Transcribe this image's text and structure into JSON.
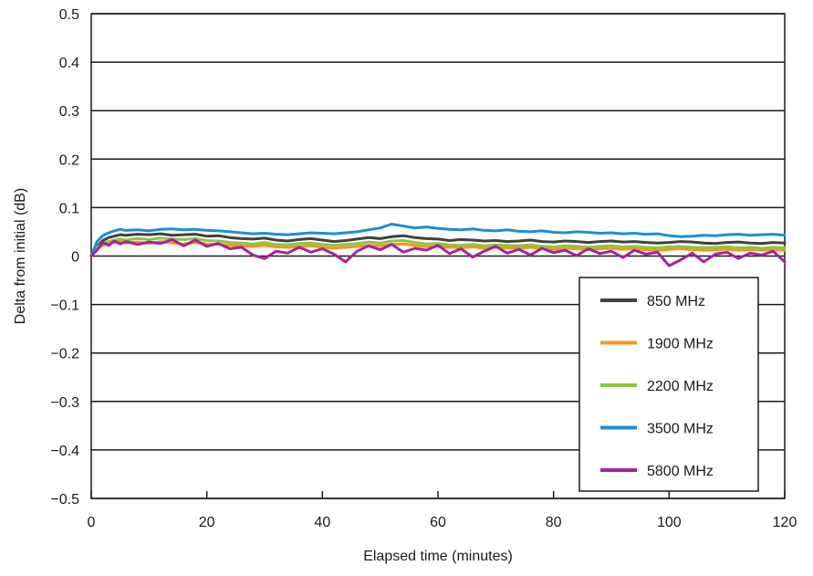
{
  "chart_data": {
    "type": "line",
    "xlabel": "Elapsed time (minutes)",
    "ylabel": "Delta from initial (dB)",
    "xlim": [
      0,
      120
    ],
    "ylim": [
      -0.5,
      0.5
    ],
    "x_ticks": [
      0,
      20,
      40,
      60,
      80,
      100,
      120
    ],
    "x_tick_labels": [
      "0",
      "20",
      "40",
      "60",
      "80",
      "100",
      "120"
    ],
    "y_ticks": [
      0.5,
      0.4,
      0.3,
      0.2,
      0.1,
      0,
      -0.1,
      -0.2,
      -0.3,
      -0.4,
      -0.5
    ],
    "y_tick_labels": [
      "0.5",
      "0.4",
      "0.3",
      "0.2",
      "0.1",
      "0",
      "−0.1",
      "−0.2",
      "−0.3",
      "−0.4",
      "−0.5"
    ],
    "grid": "horizontal",
    "legend_position": "bottom-right",
    "x": [
      0,
      1,
      2,
      3,
      4,
      5,
      6,
      8,
      10,
      12,
      14,
      16,
      18,
      20,
      22,
      24,
      26,
      28,
      30,
      32,
      34,
      36,
      38,
      40,
      42,
      44,
      46,
      48,
      50,
      52,
      54,
      56,
      58,
      60,
      62,
      64,
      66,
      68,
      70,
      72,
      74,
      76,
      78,
      80,
      82,
      84,
      86,
      88,
      90,
      92,
      94,
      96,
      98,
      100,
      102,
      104,
      106,
      108,
      110,
      112,
      114,
      116,
      118,
      120
    ],
    "series": [
      {
        "name": "850 MHz",
        "color": "#404040",
        "values": [
          0.0,
          0.02,
          0.032,
          0.038,
          0.041,
          0.044,
          0.043,
          0.045,
          0.044,
          0.046,
          0.043,
          0.044,
          0.045,
          0.041,
          0.042,
          0.038,
          0.036,
          0.035,
          0.037,
          0.033,
          0.031,
          0.034,
          0.036,
          0.033,
          0.03,
          0.032,
          0.035,
          0.038,
          0.036,
          0.04,
          0.042,
          0.038,
          0.036,
          0.035,
          0.032,
          0.034,
          0.033,
          0.031,
          0.032,
          0.03,
          0.031,
          0.033,
          0.03,
          0.029,
          0.031,
          0.03,
          0.028,
          0.03,
          0.031,
          0.029,
          0.03,
          0.028,
          0.027,
          0.028,
          0.03,
          0.029,
          0.027,
          0.026,
          0.028,
          0.029,
          0.027,
          0.026,
          0.028,
          0.027
        ]
      },
      {
        "name": "1900 MHz",
        "color": "#f7941d",
        "values": [
          0.0,
          0.015,
          0.022,
          0.026,
          0.028,
          0.03,
          0.027,
          0.029,
          0.026,
          0.03,
          0.027,
          0.025,
          0.028,
          0.025,
          0.024,
          0.022,
          0.021,
          0.02,
          0.022,
          0.019,
          0.018,
          0.02,
          0.021,
          0.018,
          0.016,
          0.018,
          0.02,
          0.022,
          0.021,
          0.024,
          0.025,
          0.022,
          0.019,
          0.02,
          0.018,
          0.017,
          0.019,
          0.016,
          0.018,
          0.017,
          0.016,
          0.018,
          0.015,
          0.014,
          0.016,
          0.015,
          0.013,
          0.015,
          0.016,
          0.014,
          0.015,
          0.013,
          0.012,
          0.014,
          0.015,
          0.013,
          0.012,
          0.013,
          0.014,
          0.012,
          0.013,
          0.012,
          0.013,
          0.012
        ]
      },
      {
        "name": "2200 MHz",
        "color": "#8dc63f",
        "values": [
          0.0,
          0.018,
          0.026,
          0.03,
          0.033,
          0.035,
          0.033,
          0.036,
          0.034,
          0.037,
          0.035,
          0.034,
          0.036,
          0.032,
          0.031,
          0.028,
          0.027,
          0.025,
          0.028,
          0.024,
          0.023,
          0.026,
          0.027,
          0.024,
          0.022,
          0.024,
          0.026,
          0.029,
          0.027,
          0.031,
          0.032,
          0.028,
          0.025,
          0.026,
          0.023,
          0.022,
          0.024,
          0.021,
          0.023,
          0.022,
          0.021,
          0.023,
          0.02,
          0.019,
          0.021,
          0.02,
          0.018,
          0.02,
          0.021,
          0.019,
          0.02,
          0.018,
          0.017,
          0.019,
          0.02,
          0.018,
          0.017,
          0.018,
          0.019,
          0.017,
          0.018,
          0.016,
          0.018,
          0.017
        ]
      },
      {
        "name": "3500 MHz",
        "color": "#1b8fd1",
        "values": [
          0.0,
          0.03,
          0.042,
          0.048,
          0.052,
          0.055,
          0.053,
          0.054,
          0.052,
          0.055,
          0.056,
          0.054,
          0.055,
          0.053,
          0.052,
          0.05,
          0.048,
          0.046,
          0.047,
          0.045,
          0.044,
          0.046,
          0.048,
          0.047,
          0.046,
          0.048,
          0.05,
          0.054,
          0.058,
          0.066,
          0.062,
          0.058,
          0.06,
          0.057,
          0.055,
          0.054,
          0.056,
          0.053,
          0.052,
          0.054,
          0.051,
          0.05,
          0.052,
          0.049,
          0.048,
          0.05,
          0.049,
          0.047,
          0.048,
          0.046,
          0.047,
          0.045,
          0.046,
          0.042,
          0.04,
          0.041,
          0.043,
          0.042,
          0.044,
          0.045,
          0.043,
          0.044,
          0.045,
          0.043
        ]
      },
      {
        "name": "5800 MHz",
        "color": "#a3239d",
        "values": [
          0.0,
          0.012,
          0.028,
          0.022,
          0.031,
          0.025,
          0.03,
          0.024,
          0.029,
          0.026,
          0.034,
          0.021,
          0.033,
          0.02,
          0.026,
          0.015,
          0.018,
          0.002,
          -0.005,
          0.01,
          0.006,
          0.018,
          0.008,
          0.015,
          0.004,
          -0.012,
          0.01,
          0.021,
          0.013,
          0.024,
          0.008,
          0.016,
          0.012,
          0.022,
          0.005,
          0.015,
          -0.002,
          0.01,
          0.02,
          0.006,
          0.014,
          0.002,
          0.016,
          0.007,
          0.012,
          0.001,
          0.015,
          0.005,
          0.01,
          -0.003,
          0.012,
          0.004,
          0.008,
          -0.02,
          -0.008,
          0.006,
          -0.012,
          0.004,
          0.008,
          -0.005,
          0.006,
          0.002,
          0.01,
          -0.012
        ]
      }
    ]
  }
}
